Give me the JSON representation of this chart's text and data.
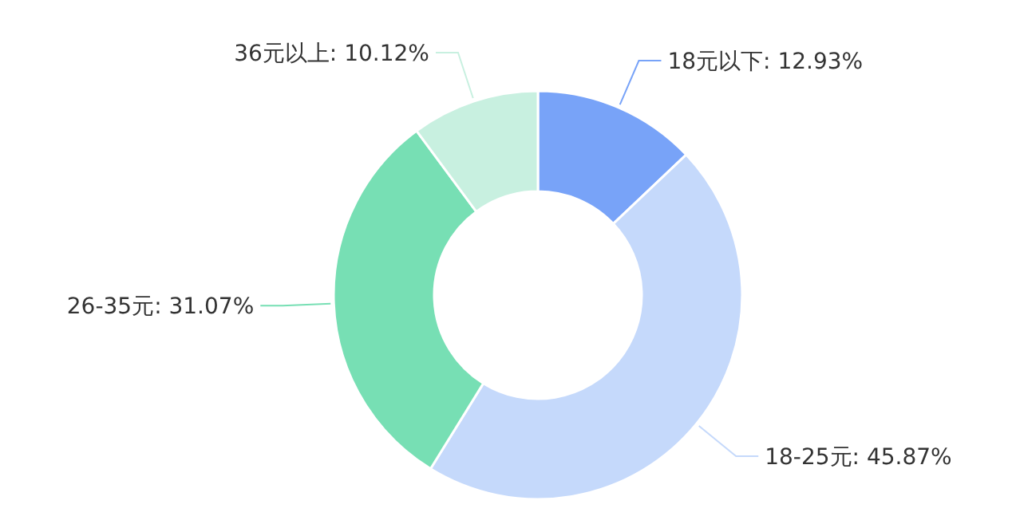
{
  "chart_data": {
    "type": "donut",
    "categories": [
      "18元以下",
      "18-25元",
      "26-35元",
      "36元以上"
    ],
    "values": [
      12.93,
      45.87,
      31.07,
      10.12
    ],
    "colors": [
      "#78a3f8",
      "#c5d9fb",
      "#77dfb4",
      "#c8f0e0"
    ],
    "value_labels": [
      "12.93%",
      "45.87%",
      "31.07%",
      "10.12%"
    ]
  }
}
